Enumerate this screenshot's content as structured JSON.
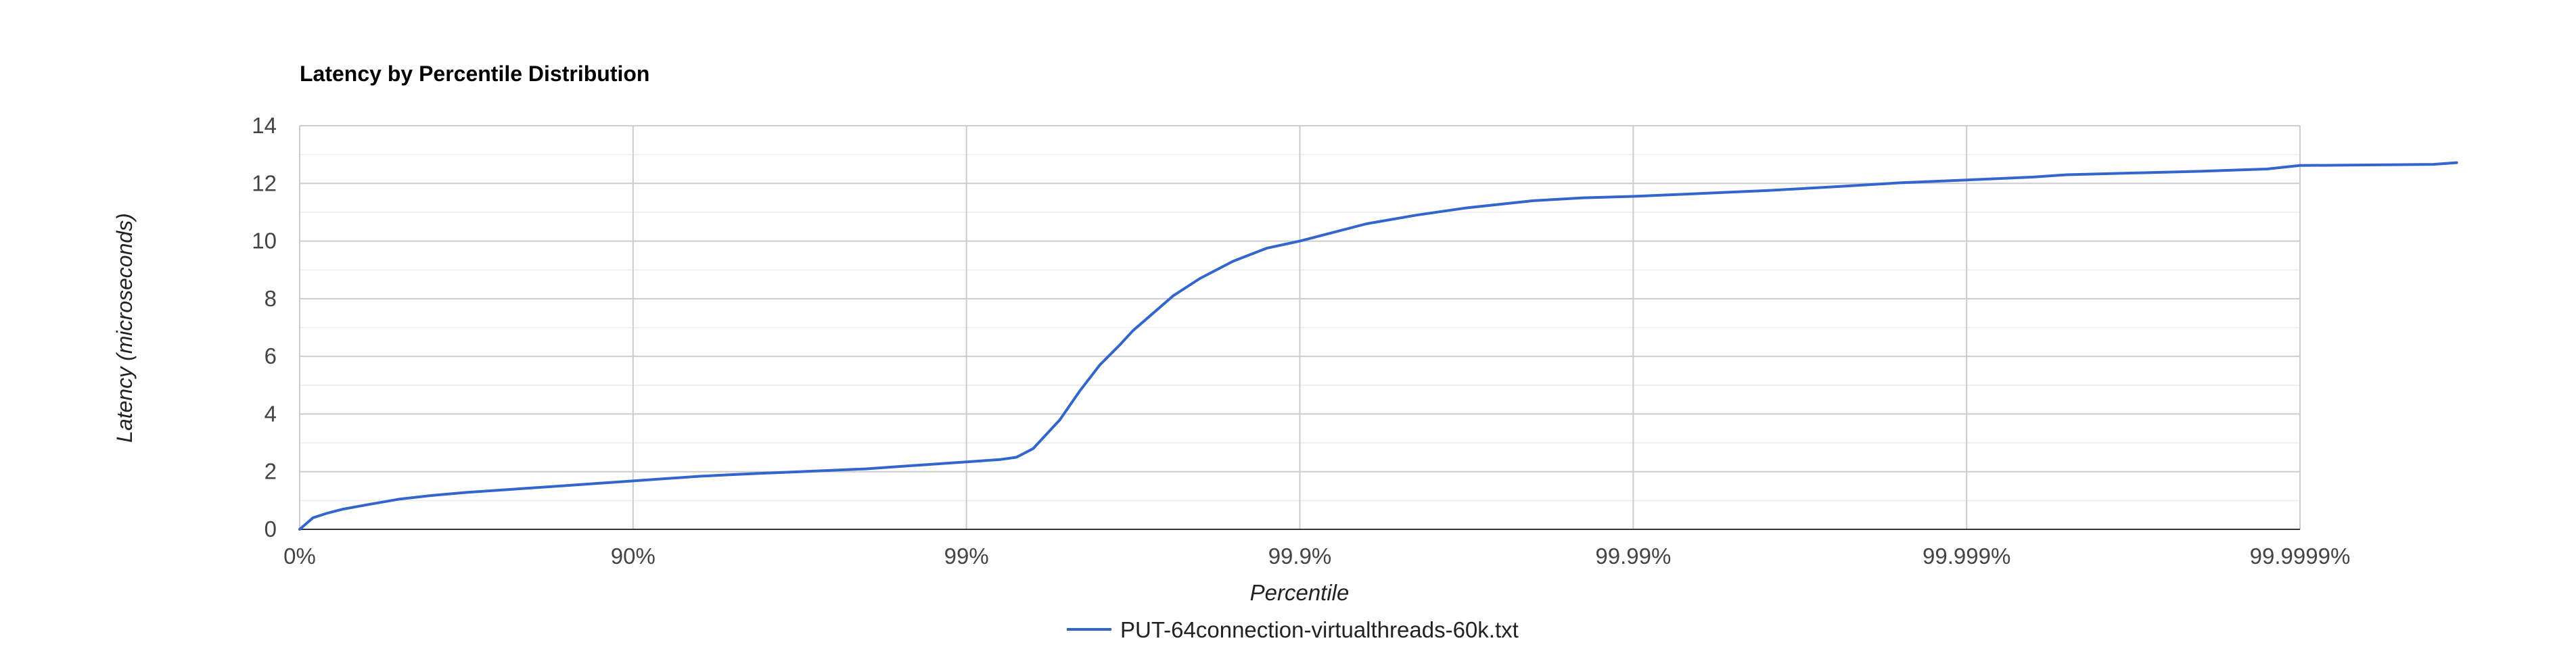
{
  "chart_data": {
    "type": "line",
    "title": "Latency by Percentile Distribution",
    "xlabel": "Percentile",
    "ylabel": "Latency (microseconds)",
    "x_scale": "log-nines",
    "x_ticks": [
      "0%",
      "90%",
      "99%",
      "99.9%",
      "99.99%",
      "99.999%",
      "99.9999%"
    ],
    "x_tick_nines": [
      0,
      1,
      2,
      3,
      4,
      5,
      6
    ],
    "y_ticks": [
      "0",
      "2",
      "4",
      "6",
      "8",
      "10",
      "12",
      "14"
    ],
    "y_tick_values": [
      0,
      2,
      4,
      6,
      8,
      10,
      12,
      14
    ],
    "ylim": [
      0,
      14
    ],
    "grid": true,
    "legend_position": "bottom",
    "series": [
      {
        "name": "PUT-64connection-virtualthreads-60k.txt",
        "color": "#3366cc",
        "points": [
          [
            0,
            0
          ],
          [
            0.04,
            0.4
          ],
          [
            0.08,
            0.55
          ],
          [
            0.13,
            0.7
          ],
          [
            0.2,
            0.85
          ],
          [
            0.3,
            1.05
          ],
          [
            0.4,
            1.18
          ],
          [
            0.5,
            1.28
          ],
          [
            0.6,
            1.36
          ],
          [
            0.7,
            1.44
          ],
          [
            0.8,
            1.52
          ],
          [
            0.9,
            1.6
          ],
          [
            1.0,
            1.68
          ],
          [
            1.1,
            1.76
          ],
          [
            1.2,
            1.84
          ],
          [
            1.3,
            1.9
          ],
          [
            1.4,
            1.95
          ],
          [
            1.5,
            2.0
          ],
          [
            1.6,
            2.05
          ],
          [
            1.7,
            2.1
          ],
          [
            1.8,
            2.18
          ],
          [
            1.9,
            2.26
          ],
          [
            2.0,
            2.34
          ],
          [
            2.1,
            2.42
          ],
          [
            2.15,
            2.5
          ],
          [
            2.2,
            2.8
          ],
          [
            2.28,
            3.8
          ],
          [
            2.34,
            4.8
          ],
          [
            2.4,
            5.7
          ],
          [
            2.46,
            6.4
          ],
          [
            2.5,
            6.9
          ],
          [
            2.56,
            7.5
          ],
          [
            2.62,
            8.1
          ],
          [
            2.7,
            8.7
          ],
          [
            2.8,
            9.3
          ],
          [
            2.9,
            9.75
          ],
          [
            3.0,
            10.0
          ],
          [
            3.1,
            10.3
          ],
          [
            3.2,
            10.6
          ],
          [
            3.35,
            10.9
          ],
          [
            3.5,
            11.15
          ],
          [
            3.7,
            11.4
          ],
          [
            3.85,
            11.5
          ],
          [
            4.0,
            11.55
          ],
          [
            4.2,
            11.65
          ],
          [
            4.4,
            11.75
          ],
          [
            4.6,
            11.88
          ],
          [
            4.8,
            12.02
          ],
          [
            5.0,
            12.12
          ],
          [
            5.2,
            12.22
          ],
          [
            5.3,
            12.3
          ],
          [
            5.5,
            12.36
          ],
          [
            5.7,
            12.42
          ],
          [
            5.9,
            12.5
          ],
          [
            6.0,
            12.62
          ],
          [
            6.2,
            12.64
          ],
          [
            6.4,
            12.66
          ],
          [
            6.47,
            12.72
          ]
        ]
      }
    ]
  }
}
